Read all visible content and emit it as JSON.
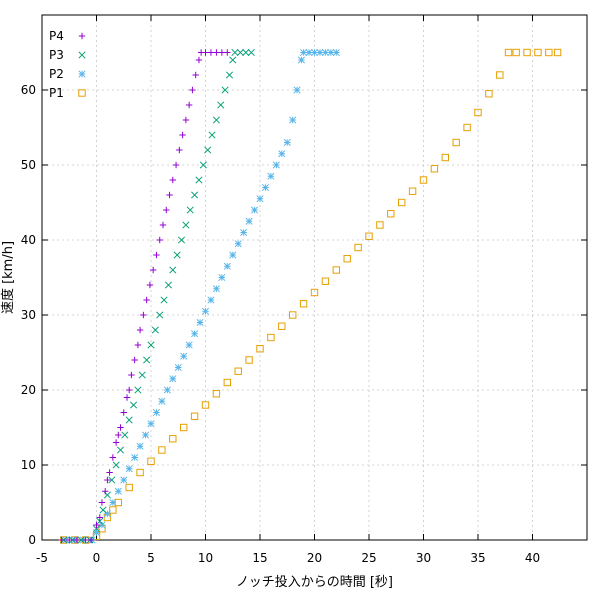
{
  "chart_data": {
    "type": "scatter",
    "xlabel": "ノッチ投入からの時間 [秒]",
    "ylabel": "速度 [km/h]",
    "xlim": [
      -5,
      45
    ],
    "ylim": [
      0,
      70
    ],
    "xticks": [
      -5,
      0,
      5,
      10,
      15,
      20,
      25,
      30,
      35,
      40
    ],
    "yticks": [
      0,
      10,
      20,
      30,
      40,
      50,
      60
    ],
    "grid": true,
    "legend": "top-left",
    "series": [
      {
        "name": "P4",
        "marker": "plus",
        "color": "#9400d3",
        "points": [
          [
            -3.2,
            0
          ],
          [
            -2.5,
            0
          ],
          [
            -1.8,
            0
          ],
          [
            -1.0,
            0
          ],
          [
            -0.5,
            0
          ],
          [
            0.0,
            2
          ],
          [
            0.3,
            3
          ],
          [
            0.5,
            5
          ],
          [
            0.8,
            6.5
          ],
          [
            1.0,
            8
          ],
          [
            1.2,
            9
          ],
          [
            1.5,
            11
          ],
          [
            1.8,
            13
          ],
          [
            2.0,
            14
          ],
          [
            2.2,
            15
          ],
          [
            2.5,
            17
          ],
          [
            2.8,
            19
          ],
          [
            3.0,
            20
          ],
          [
            3.2,
            22
          ],
          [
            3.5,
            24
          ],
          [
            3.8,
            26
          ],
          [
            4.0,
            28
          ],
          [
            4.3,
            30
          ],
          [
            4.6,
            32
          ],
          [
            4.9,
            34
          ],
          [
            5.2,
            36
          ],
          [
            5.5,
            38
          ],
          [
            5.8,
            40
          ],
          [
            6.1,
            42
          ],
          [
            6.4,
            44
          ],
          [
            6.7,
            46
          ],
          [
            7.0,
            48
          ],
          [
            7.3,
            50
          ],
          [
            7.6,
            52
          ],
          [
            7.9,
            54
          ],
          [
            8.2,
            56
          ],
          [
            8.5,
            58
          ],
          [
            8.8,
            60
          ],
          [
            9.1,
            62
          ],
          [
            9.4,
            64
          ],
          [
            9.6,
            65
          ],
          [
            10.0,
            65
          ],
          [
            10.5,
            65
          ],
          [
            11.0,
            65
          ],
          [
            11.5,
            65
          ],
          [
            12.0,
            65
          ]
        ]
      },
      {
        "name": "P3",
        "marker": "x",
        "color": "#009e73",
        "points": [
          [
            -3.0,
            0
          ],
          [
            -2.2,
            0
          ],
          [
            -1.4,
            0
          ],
          [
            -0.6,
            0
          ],
          [
            0.0,
            1.5
          ],
          [
            0.3,
            2.5
          ],
          [
            0.6,
            4
          ],
          [
            1.0,
            6
          ],
          [
            1.4,
            8
          ],
          [
            1.8,
            10
          ],
          [
            2.2,
            12
          ],
          [
            2.6,
            14
          ],
          [
            3.0,
            16
          ],
          [
            3.4,
            18
          ],
          [
            3.8,
            20
          ],
          [
            4.2,
            22
          ],
          [
            4.6,
            24
          ],
          [
            5.0,
            26
          ],
          [
            5.4,
            28
          ],
          [
            5.8,
            30
          ],
          [
            6.2,
            32
          ],
          [
            6.6,
            34
          ],
          [
            7.0,
            36
          ],
          [
            7.4,
            38
          ],
          [
            7.8,
            40
          ],
          [
            8.2,
            42
          ],
          [
            8.6,
            44
          ],
          [
            9.0,
            46
          ],
          [
            9.4,
            48
          ],
          [
            9.8,
            50
          ],
          [
            10.2,
            52
          ],
          [
            10.6,
            54
          ],
          [
            11.0,
            56
          ],
          [
            11.4,
            58
          ],
          [
            11.8,
            60
          ],
          [
            12.2,
            62
          ],
          [
            12.5,
            64
          ],
          [
            12.7,
            65
          ],
          [
            13.2,
            65
          ],
          [
            13.7,
            65
          ],
          [
            14.2,
            65
          ]
        ]
      },
      {
        "name": "P2",
        "marker": "star",
        "color": "#56b4e9",
        "points": [
          [
            -2.8,
            0
          ],
          [
            -2.0,
            0
          ],
          [
            -1.2,
            0
          ],
          [
            -0.4,
            0
          ],
          [
            0.0,
            1
          ],
          [
            0.5,
            2
          ],
          [
            1.0,
            3.5
          ],
          [
            1.5,
            5
          ],
          [
            2.0,
            6.5
          ],
          [
            2.5,
            8
          ],
          [
            3.0,
            9.5
          ],
          [
            3.5,
            11
          ],
          [
            4.0,
            12.5
          ],
          [
            4.5,
            14
          ],
          [
            5.0,
            15.5
          ],
          [
            5.5,
            17
          ],
          [
            6.0,
            18.5
          ],
          [
            6.5,
            20
          ],
          [
            7.0,
            21.5
          ],
          [
            7.5,
            23
          ],
          [
            8.0,
            24.5
          ],
          [
            8.5,
            26
          ],
          [
            9.0,
            27.5
          ],
          [
            9.5,
            29
          ],
          [
            10.0,
            30.5
          ],
          [
            10.5,
            32
          ],
          [
            11.0,
            33.5
          ],
          [
            11.5,
            35
          ],
          [
            12.0,
            36.5
          ],
          [
            12.5,
            38
          ],
          [
            13.0,
            39.5
          ],
          [
            13.5,
            41
          ],
          [
            14.0,
            42.5
          ],
          [
            14.5,
            44
          ],
          [
            15.0,
            45.5
          ],
          [
            15.5,
            47
          ],
          [
            16.0,
            48.5
          ],
          [
            16.5,
            50
          ],
          [
            17.0,
            51.5
          ],
          [
            17.5,
            53
          ],
          [
            18.0,
            56
          ],
          [
            18.4,
            60
          ],
          [
            18.8,
            64
          ],
          [
            19.0,
            65
          ],
          [
            19.5,
            65
          ],
          [
            20.0,
            65
          ],
          [
            20.5,
            65
          ],
          [
            21.0,
            65
          ],
          [
            21.5,
            65
          ],
          [
            22.0,
            65
          ]
        ]
      },
      {
        "name": "P1",
        "marker": "square",
        "color": "#e69f00",
        "points": [
          [
            -3.0,
            0
          ],
          [
            -2.0,
            0
          ],
          [
            -1.0,
            0
          ],
          [
            0.0,
            0.5
          ],
          [
            0.5,
            1.5
          ],
          [
            1.0,
            3
          ],
          [
            1.5,
            4
          ],
          [
            2.0,
            5
          ],
          [
            3.0,
            7
          ],
          [
            4.0,
            9
          ],
          [
            5.0,
            10.5
          ],
          [
            6.0,
            12
          ],
          [
            7.0,
            13.5
          ],
          [
            8.0,
            15
          ],
          [
            9.0,
            16.5
          ],
          [
            10.0,
            18
          ],
          [
            11.0,
            19.5
          ],
          [
            12.0,
            21
          ],
          [
            13.0,
            22.5
          ],
          [
            14.0,
            24
          ],
          [
            15.0,
            25.5
          ],
          [
            16.0,
            27
          ],
          [
            17.0,
            28.5
          ],
          [
            18.0,
            30
          ],
          [
            19.0,
            31.5
          ],
          [
            20.0,
            33
          ],
          [
            21.0,
            34.5
          ],
          [
            22.0,
            36
          ],
          [
            23.0,
            37.5
          ],
          [
            24.0,
            39
          ],
          [
            25.0,
            40.5
          ],
          [
            26.0,
            42
          ],
          [
            27.0,
            43.5
          ],
          [
            28.0,
            45
          ],
          [
            29.0,
            46.5
          ],
          [
            30.0,
            48
          ],
          [
            31.0,
            49.5
          ],
          [
            32.0,
            51
          ],
          [
            33.0,
            53
          ],
          [
            34.0,
            55
          ],
          [
            35.0,
            57
          ],
          [
            36.0,
            59.5
          ],
          [
            37.0,
            62
          ],
          [
            37.8,
            65
          ],
          [
            38.5,
            65
          ],
          [
            39.5,
            65
          ],
          [
            40.5,
            65
          ],
          [
            41.5,
            65
          ],
          [
            42.3,
            65
          ]
        ]
      }
    ]
  }
}
